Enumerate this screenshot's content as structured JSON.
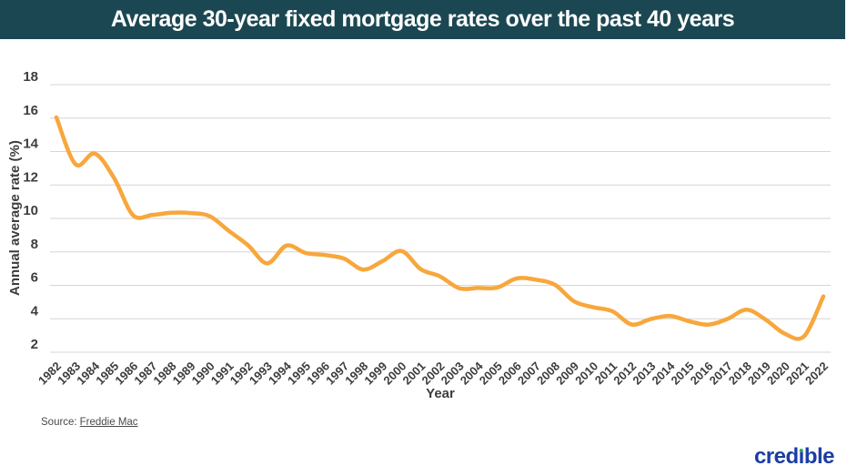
{
  "colors": {
    "header_bg": "#1B4752",
    "page_bg": "#FFFFFF"
  },
  "header": {
    "title": "Average 30-year fixed mortgage rates over the past 40 years"
  },
  "chart_data": {
    "type": "line",
    "title": "Average 30-year fixed mortgage rates over the past 40 years",
    "x": [
      1982,
      1983,
      1984,
      1985,
      1986,
      1987,
      1988,
      1989,
      1990,
      1991,
      1992,
      1993,
      1994,
      1995,
      1996,
      1997,
      1998,
      1999,
      2000,
      2001,
      2002,
      2003,
      2004,
      2005,
      2006,
      2007,
      2008,
      2009,
      2010,
      2011,
      2012,
      2013,
      2014,
      2015,
      2016,
      2017,
      2018,
      2019,
      2020,
      2021,
      2022
    ],
    "series": [
      {
        "name": "Average 30-year fixed mortgage rate",
        "color": "#F7A73C",
        "values": [
          16.04,
          13.24,
          13.88,
          12.43,
          10.19,
          10.21,
          10.34,
          10.32,
          10.13,
          9.25,
          8.39,
          7.31,
          8.38,
          7.93,
          7.81,
          7.6,
          6.94,
          7.44,
          8.05,
          6.97,
          6.54,
          5.83,
          5.84,
          5.87,
          6.41,
          6.34,
          6.03,
          5.04,
          4.69,
          4.45,
          3.66,
          3.98,
          4.17,
          3.85,
          3.65,
          3.99,
          4.54,
          3.94,
          3.1,
          2.96,
          5.34
        ]
      }
    ],
    "xlabel": "Year",
    "ylabel": "Annual average rate (%)",
    "ylim": [
      2,
      18
    ],
    "yticks": [
      18,
      16,
      14,
      12,
      10,
      8,
      6,
      4,
      2
    ],
    "grid": true,
    "grid_color": "#D6D6D6",
    "tick_color": "#3D3D3D",
    "legend": "none"
  },
  "source": {
    "prefix": "Source:",
    "link_text": "Freddie Mac"
  },
  "logo": {
    "pre": "cred",
    "i": "ı",
    "post": "ble",
    "text_color": "#1B3DA4",
    "dot_color": "#2FA860"
  }
}
